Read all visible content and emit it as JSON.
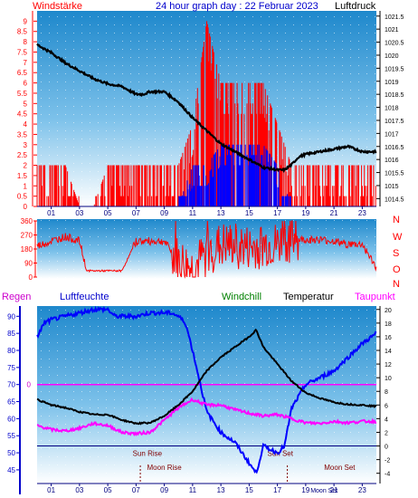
{
  "header": {
    "left_label": "Windstärke",
    "title": "24 hour graph day : 22 Februar 2023",
    "right_label": "Luftdruck"
  },
  "bottom_header": {
    "regen": "Regen",
    "luftfeuchte": "Luftfeuchte",
    "windchill": "Windchill",
    "temperatur": "Temperatur",
    "taupunkt": "Taupunkt"
  },
  "colors": {
    "red": "#ff0000",
    "blue": "#0000ff",
    "black": "#000000",
    "magenta": "#ff00ff",
    "green": "#008000",
    "darkblue": "#000080",
    "sky_top": "#1e90d0",
    "sky_bottom": "#ffffff"
  },
  "chart_data": [
    {
      "type": "line",
      "name": "wind-pressure",
      "x_ticks": [
        "01",
        "03",
        "05",
        "07",
        "09",
        "11",
        "13",
        "15",
        "17",
        "19",
        "21",
        "23"
      ],
      "y_left_ticks": [
        "0",
        "0.5",
        "1",
        "1.5",
        "2",
        "2.5",
        "3",
        "3.5",
        "4",
        "4.5",
        "5",
        "5.5",
        "6",
        "6.5",
        "7",
        "7.5",
        "8",
        "8.5",
        "9"
      ],
      "y_left_range": [
        0,
        9.5
      ],
      "y_right_ticks": [
        "1014.5",
        "1015",
        "1015.5",
        "1016",
        "1016.5",
        "1017",
        "1017.5",
        "1018",
        "1018.5",
        "1019",
        "1019.5",
        "1020",
        "1020.5",
        "1021",
        "1021.5"
      ],
      "y_right_range": [
        1014.2,
        1021.7
      ],
      "pressure": {
        "x": [
          0,
          1,
          2,
          3,
          4,
          5,
          6,
          7,
          7.5,
          8,
          9,
          10,
          11,
          12,
          13,
          14,
          15,
          16,
          17,
          17.5,
          18,
          18.5,
          19,
          20,
          21,
          22,
          23,
          24
        ],
        "y": [
          1020.4,
          1020.1,
          1019.7,
          1019.4,
          1019.1,
          1018.9,
          1018.8,
          1018.5,
          1018.5,
          1018.6,
          1018.6,
          1018.2,
          1017.6,
          1017.1,
          1016.6,
          1016.3,
          1016.0,
          1015.7,
          1015.6,
          1015.6,
          1015.8,
          1016.1,
          1016.2,
          1016.3,
          1016.4,
          1016.5,
          1016.3,
          1016.3
        ]
      },
      "wind_gust_max": {
        "x": [
          0,
          1,
          2,
          3,
          4,
          5,
          6,
          7,
          8,
          9,
          10,
          11,
          12,
          13,
          14,
          15,
          16,
          17,
          18,
          19,
          20,
          21,
          22,
          23,
          24
        ],
        "y": [
          2,
          2,
          2,
          0,
          0,
          2,
          2,
          2,
          2,
          2,
          2,
          4,
          9,
          6,
          6,
          6,
          6,
          4,
          2,
          2,
          2,
          2,
          2,
          2,
          2
        ]
      },
      "wind_speed_max": {
        "x": [
          0,
          1,
          2,
          3,
          4,
          5,
          6,
          7,
          8,
          9,
          10,
          11,
          12,
          13,
          14,
          15,
          16,
          17,
          18,
          19,
          20,
          21,
          22,
          23,
          24
        ],
        "y": [
          0,
          0,
          0,
          0,
          0,
          0,
          0,
          0,
          0,
          0,
          0,
          2,
          2,
          3,
          3,
          3,
          3,
          2,
          0,
          0,
          0,
          0,
          0,
          0,
          0
        ]
      }
    },
    {
      "type": "line",
      "name": "wind-direction",
      "y_left_ticks": [
        "0",
        "90",
        "180",
        "270",
        "360"
      ],
      "y_range": [
        0,
        360
      ],
      "y_right_labels": [
        "N",
        "W",
        "S",
        "O",
        "N"
      ],
      "direction_profile": {
        "x": [
          0,
          1,
          2,
          3,
          3.5,
          4,
          5,
          6,
          7,
          8,
          9,
          10,
          11,
          12,
          13,
          14,
          15,
          16,
          17,
          18,
          19,
          20,
          21,
          22,
          23,
          24
        ],
        "y": [
          200,
          230,
          260,
          230,
          40,
          40,
          40,
          40,
          230,
          230,
          230,
          100,
          50,
          150,
          200,
          200,
          180,
          200,
          200,
          240,
          240,
          240,
          230,
          210,
          210,
          60
        ]
      }
    },
    {
      "type": "line",
      "name": "temp-humidity",
      "y_left_ticks": [
        "45",
        "50",
        "55",
        "60",
        "65",
        "70",
        "75",
        "80",
        "85",
        "90"
      ],
      "y_left_range": [
        41,
        93
      ],
      "y_right_ticks": [
        "-4",
        "-2",
        "0",
        "2",
        "4",
        "6",
        "8",
        "10",
        "12",
        "14",
        "16",
        "18",
        "20"
      ],
      "y_right_range": [
        -5.5,
        20.5
      ],
      "rain_axis_tick": "0",
      "sun_rise_label": "Sun Rise",
      "sun_set_label": "Sun Set",
      "moon_rise_label": "Moon Rise",
      "moon_set_label": "Moon Set",
      "moon_set_x_label": "Moon Set",
      "zero_line_temp": 0,
      "rain_line_value": 70,
      "humidity": {
        "x": [
          0,
          0.5,
          1,
          2,
          3,
          4,
          5,
          5.5,
          6,
          7,
          8,
          9,
          9.5,
          10,
          10.5,
          11,
          12,
          13,
          14,
          15,
          15.5,
          16,
          17,
          17.5,
          18,
          19,
          20,
          21,
          22,
          23,
          24
        ],
        "y": [
          84,
          88,
          89,
          90,
          91,
          92,
          92,
          90,
          90,
          90,
          91,
          91,
          91,
          90,
          88,
          80,
          62,
          56,
          53,
          47,
          44,
          52,
          50,
          52,
          63,
          70,
          72,
          74,
          78,
          82,
          85
        ]
      },
      "temperature": {
        "x": [
          0,
          1,
          2,
          3,
          4,
          5,
          6,
          7,
          8,
          9,
          10,
          11,
          12,
          13,
          14,
          15,
          15.5,
          16,
          17,
          18,
          19,
          20,
          21,
          22,
          23,
          24
        ],
        "y": [
          6.8,
          6.0,
          5.6,
          5.0,
          4.6,
          4.6,
          3.8,
          3.3,
          3.4,
          4.4,
          6.0,
          8.0,
          11.0,
          13.0,
          14.5,
          16.0,
          17.0,
          14.5,
          12.0,
          9.5,
          7.8,
          7.0,
          6.4,
          6.1,
          6.0,
          5.8
        ]
      },
      "dewpoint": {
        "x": [
          0,
          1,
          2,
          3,
          4,
          5,
          6,
          7,
          8,
          9,
          10,
          11,
          12,
          13,
          14,
          15,
          16,
          17,
          18,
          19,
          20,
          21,
          22,
          23,
          24
        ],
        "y": [
          3.0,
          2.4,
          2.2,
          2.6,
          3.3,
          3.0,
          2.0,
          1.8,
          2.0,
          3.8,
          5.6,
          6.8,
          6.0,
          6.0,
          5.3,
          4.8,
          4.4,
          4.6,
          4.0,
          3.4,
          3.3,
          3.6,
          3.4,
          3.6,
          3.6
        ]
      }
    }
  ]
}
